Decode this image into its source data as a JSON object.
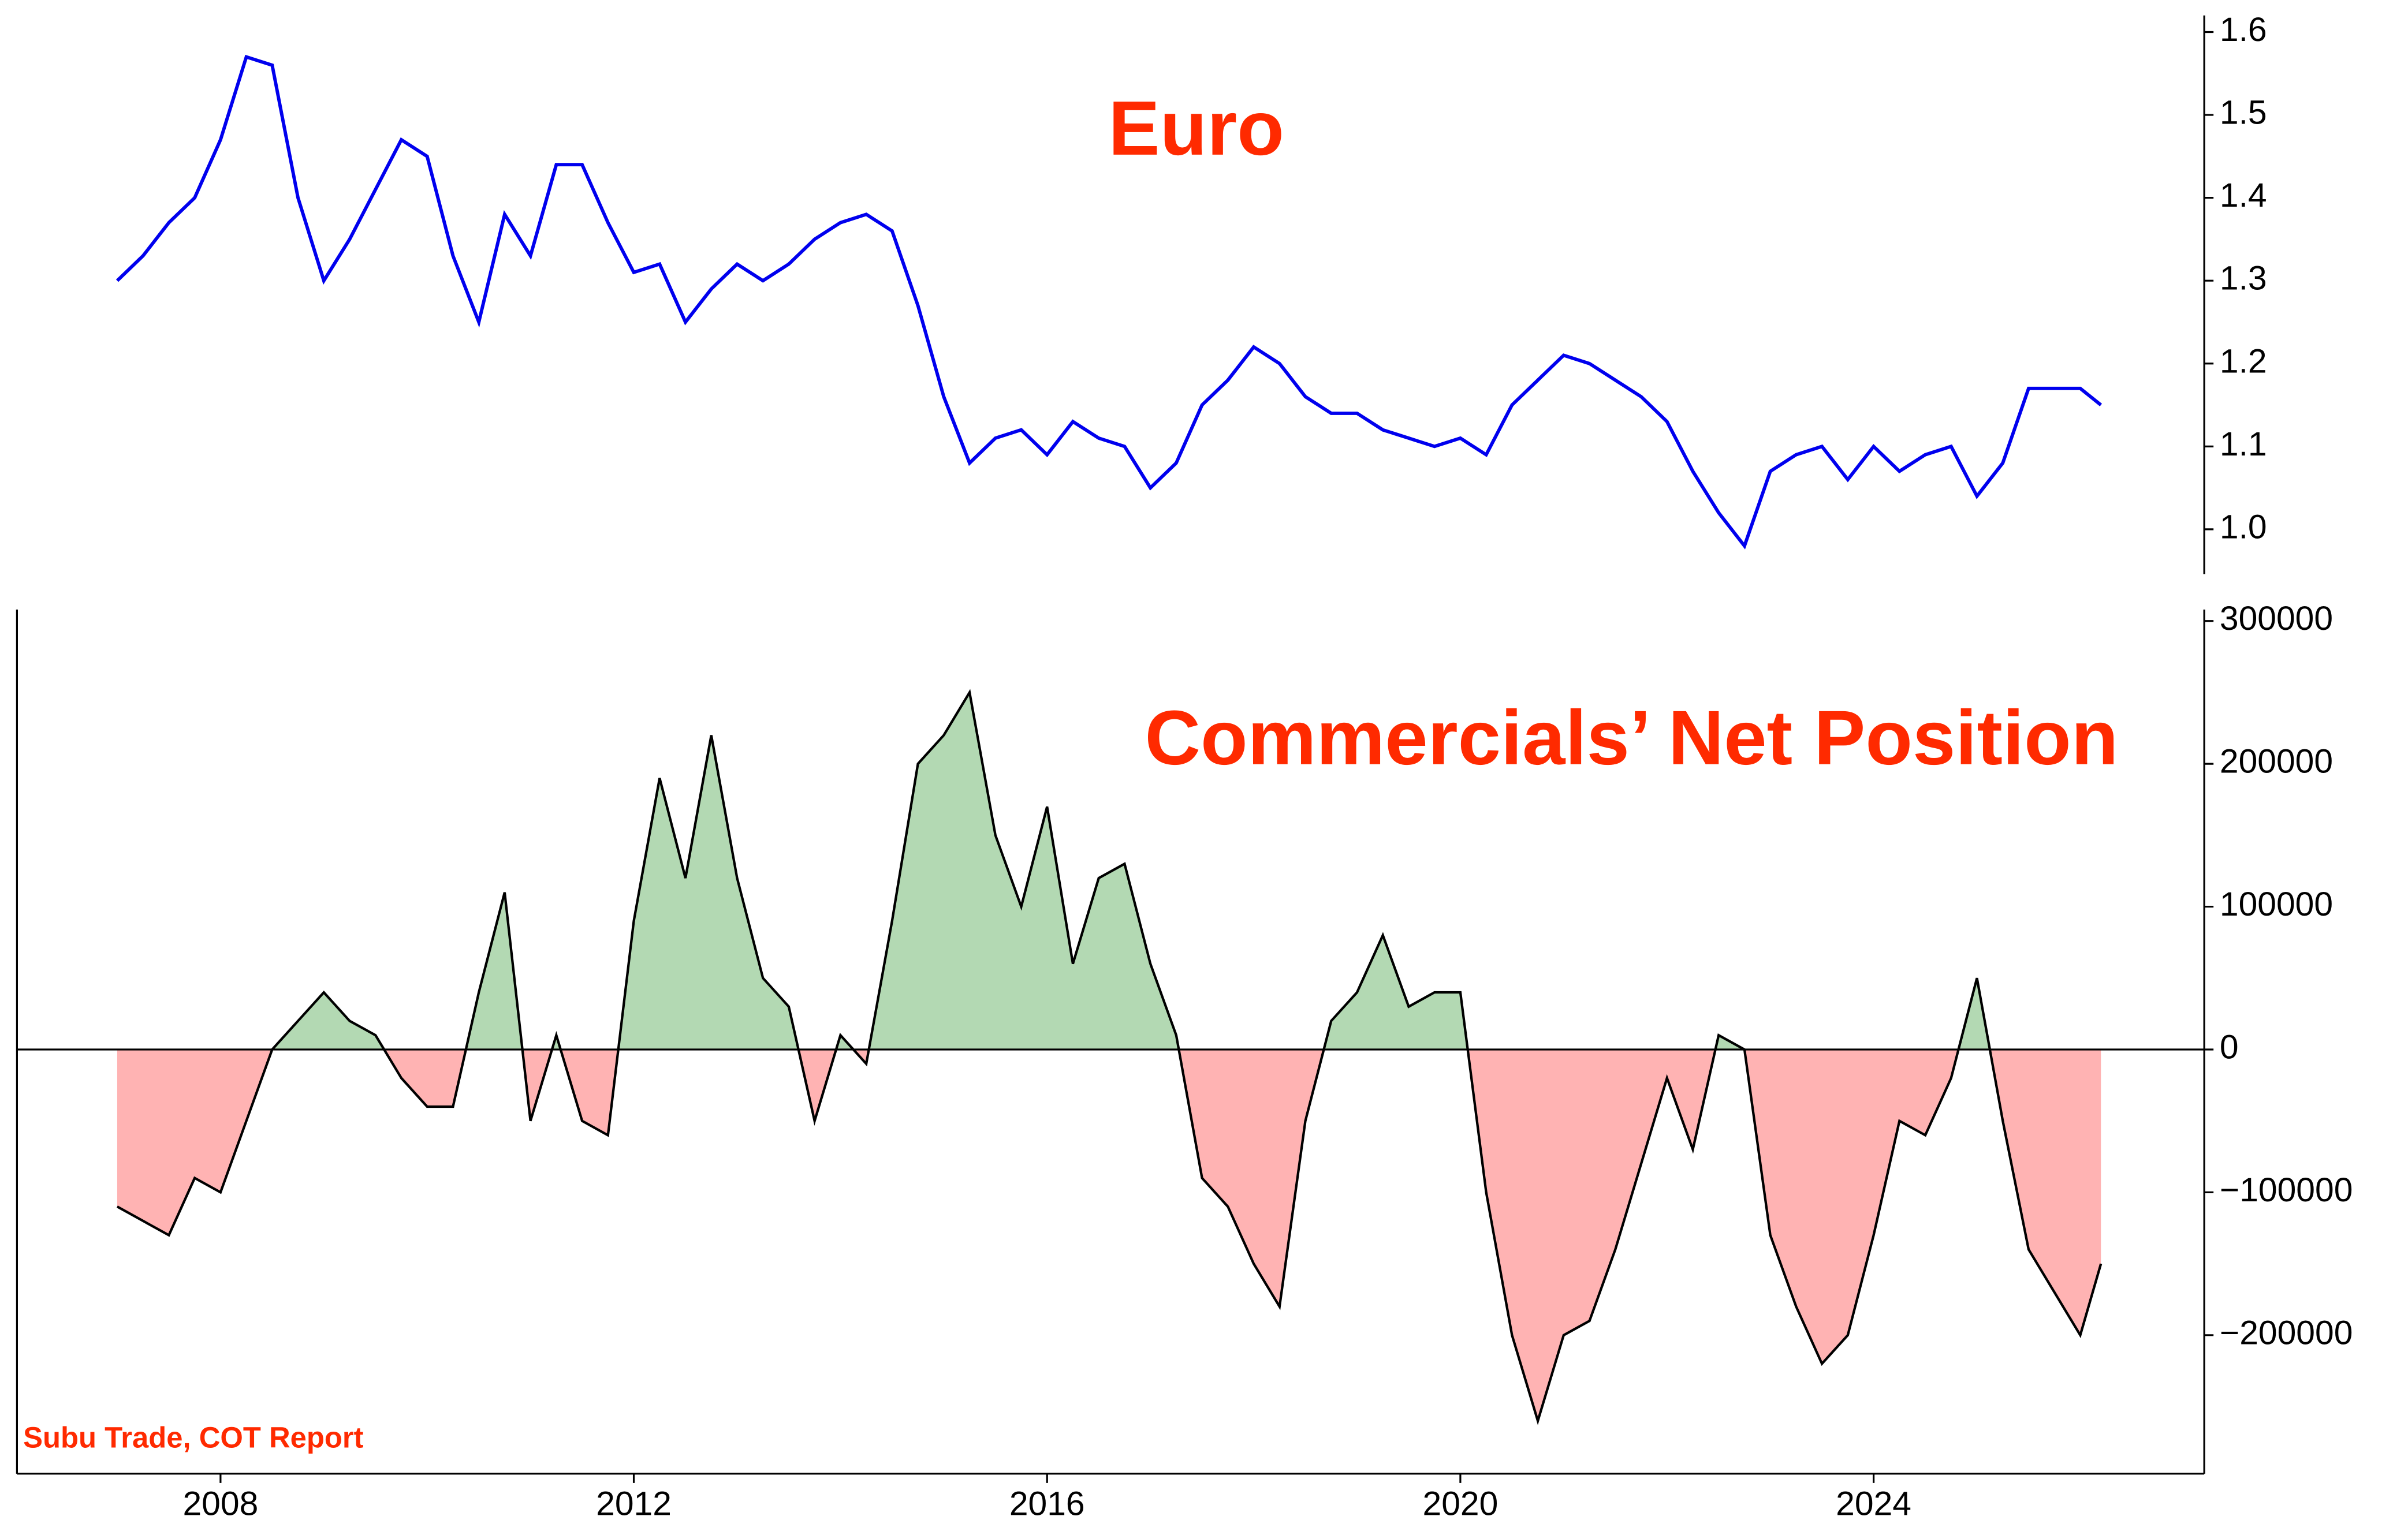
{
  "chart_data": [
    {
      "type": "line",
      "title": "Euro",
      "color": "#0000ee",
      "x": [
        2007.0,
        2007.25,
        2007.5,
        2007.75,
        2008.0,
        2008.25,
        2008.5,
        2008.75,
        2009.0,
        2009.25,
        2009.5,
        2009.75,
        2010.0,
        2010.25,
        2010.5,
        2010.75,
        2011.0,
        2011.25,
        2011.5,
        2011.75,
        2012.0,
        2012.25,
        2012.5,
        2012.75,
        2013.0,
        2013.25,
        2013.5,
        2013.75,
        2014.0,
        2014.25,
        2014.5,
        2014.75,
        2015.0,
        2015.25,
        2015.5,
        2015.75,
        2016.0,
        2016.25,
        2016.5,
        2016.75,
        2017.0,
        2017.25,
        2017.5,
        2017.75,
        2018.0,
        2018.25,
        2018.5,
        2018.75,
        2019.0,
        2019.25,
        2019.5,
        2019.75,
        2020.0,
        2020.25,
        2020.5,
        2020.75,
        2021.0,
        2021.25,
        2021.5,
        2021.75,
        2022.0,
        2022.25,
        2022.5,
        2022.75,
        2023.0,
        2023.25,
        2023.5,
        2023.75,
        2024.0,
        2024.25,
        2024.5,
        2024.75,
        2025.0,
        2025.25,
        2025.5,
        2025.75,
        2026.0,
        2026.2
      ],
      "values": [
        1.3,
        1.33,
        1.37,
        1.4,
        1.47,
        1.57,
        1.56,
        1.4,
        1.3,
        1.35,
        1.41,
        1.47,
        1.45,
        1.33,
        1.25,
        1.38,
        1.33,
        1.44,
        1.44,
        1.37,
        1.31,
        1.32,
        1.25,
        1.29,
        1.32,
        1.3,
        1.32,
        1.35,
        1.37,
        1.38,
        1.36,
        1.27,
        1.16,
        1.08,
        1.11,
        1.12,
        1.09,
        1.13,
        1.11,
        1.1,
        1.05,
        1.08,
        1.15,
        1.18,
        1.22,
        1.2,
        1.16,
        1.14,
        1.14,
        1.12,
        1.11,
        1.1,
        1.11,
        1.09,
        1.15,
        1.18,
        1.21,
        1.2,
        1.18,
        1.16,
        1.13,
        1.07,
        1.02,
        0.98,
        1.07,
        1.09,
        1.1,
        1.06,
        1.1,
        1.07,
        1.09,
        1.1,
        1.04,
        1.08,
        1.17,
        1.17,
        1.17,
        1.15
      ],
      "xlim": [
        2006.03,
        2027.2
      ],
      "ylim": [
        0.946,
        1.62
      ],
      "yticks": [
        {
          "value": 1.0,
          "label": "1.0"
        },
        1.1,
        1.2,
        1.3,
        1.4,
        1.5,
        1.6
      ]
    },
    {
      "type": "area",
      "title": "Commercials’ Net Position",
      "color": "#000000",
      "fill_colors": {
        "positive": "#b3d9b3",
        "negative": "#ffb3b3"
      },
      "annotation": "Subu Trade, COT Report",
      "x": [
        2007.0,
        2007.25,
        2007.5,
        2007.75,
        2008.0,
        2008.25,
        2008.5,
        2008.75,
        2009.0,
        2009.25,
        2009.5,
        2009.75,
        2010.0,
        2010.25,
        2010.5,
        2010.75,
        2011.0,
        2011.25,
        2011.5,
        2011.75,
        2012.0,
        2012.25,
        2012.5,
        2012.75,
        2013.0,
        2013.25,
        2013.5,
        2013.75,
        2014.0,
        2014.25,
        2014.5,
        2014.75,
        2015.0,
        2015.25,
        2015.5,
        2015.75,
        2016.0,
        2016.25,
        2016.5,
        2016.75,
        2017.0,
        2017.25,
        2017.5,
        2017.75,
        2018.0,
        2018.25,
        2018.5,
        2018.75,
        2019.0,
        2019.25,
        2019.5,
        2019.75,
        2020.0,
        2020.25,
        2020.5,
        2020.75,
        2021.0,
        2021.25,
        2021.5,
        2021.75,
        2022.0,
        2022.25,
        2022.5,
        2022.75,
        2023.0,
        2023.25,
        2023.5,
        2023.75,
        2024.0,
        2024.25,
        2024.5,
        2024.75,
        2025.0,
        2025.25,
        2025.5,
        2025.75,
        2026.0,
        2026.2
      ],
      "values": [
        -110000,
        -120000,
        -130000,
        -90000,
        -100000,
        -50000,
        0,
        20000,
        40000,
        20000,
        10000,
        -20000,
        -40000,
        -40000,
        40000,
        110000,
        -50000,
        10000,
        -50000,
        -60000,
        90000,
        190000,
        120000,
        220000,
        120000,
        50000,
        30000,
        -50000,
        10000,
        -10000,
        90000,
        200000,
        220000,
        250000,
        150000,
        100000,
        170000,
        60000,
        120000,
        130000,
        60000,
        10000,
        -90000,
        -110000,
        -150000,
        -180000,
        -50000,
        20000,
        40000,
        80000,
        30000,
        40000,
        40000,
        -100000,
        -200000,
        -260000,
        -200000,
        -190000,
        -140000,
        -80000,
        -20000,
        -70000,
        10000,
        0,
        -130000,
        -180000,
        -220000,
        -200000,
        -130000,
        -50000,
        -60000,
        -20000,
        50000,
        -50000,
        -140000,
        -170000,
        -200000,
        -150000
      ],
      "xlim": [
        2006.03,
        2027.2
      ],
      "ylim": [
        -297000,
        308000
      ],
      "yticks": [
        {
          "value": -200000,
          "label": "−200000"
        },
        {
          "value": -100000,
          "label": "−100000"
        },
        0,
        100000,
        200000,
        300000
      ],
      "xticks": [
        2008,
        2012,
        2016,
        2020,
        2024
      ]
    }
  ]
}
